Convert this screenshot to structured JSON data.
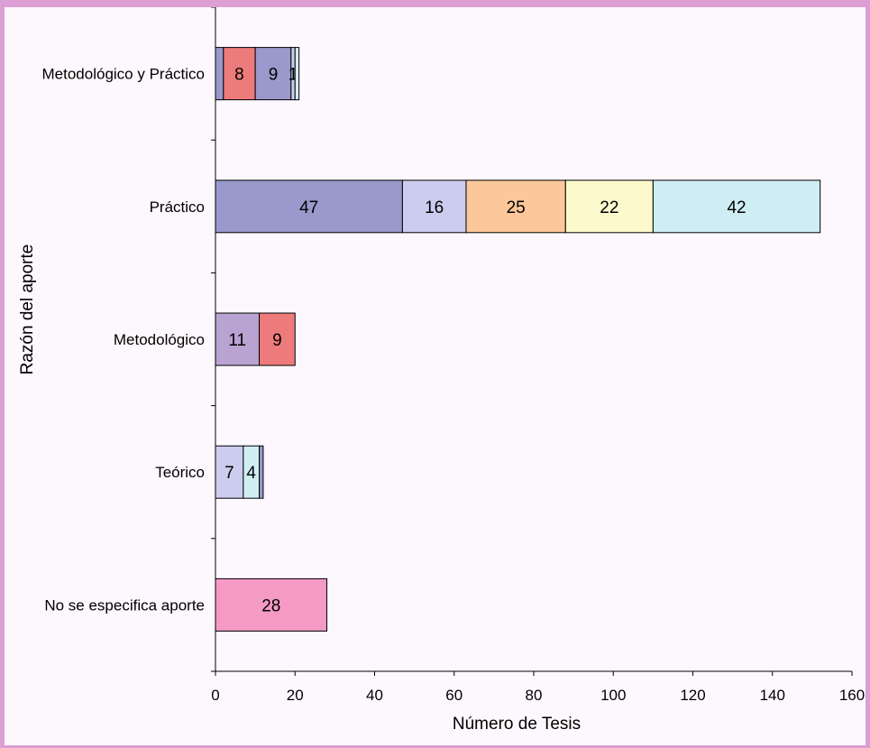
{
  "chart_data": {
    "type": "bar",
    "orientation": "horizontal",
    "stacked": true,
    "xlabel": "Número de Tesis",
    "ylabel": "Razón del aporte",
    "xlim": [
      0,
      160
    ],
    "xticks": [
      "0",
      "20",
      "40",
      "60",
      "80",
      "100",
      "120",
      "140",
      "160"
    ],
    "grid": false,
    "legend": "none",
    "categories": [
      "Metodológico y Práctico",
      "Práctico",
      "Metodológico",
      "Teórico",
      "No se especifica aporte"
    ],
    "bars": [
      {
        "category": "Metodológico y Práctico",
        "segments": [
          {
            "value": 2,
            "label": "",
            "color": "#9999cc"
          },
          {
            "value": 8,
            "label": "8",
            "color": "#ee7b7b"
          },
          {
            "value": 9,
            "label": "9",
            "color": "#9999cc"
          },
          {
            "value": 1,
            "label": "1",
            "color": "#ccccee"
          },
          {
            "value": 1,
            "label": "",
            "color": "#cfeef4"
          }
        ]
      },
      {
        "category": "Práctico",
        "segments": [
          {
            "value": 47,
            "label": "47",
            "color": "#9999cc"
          },
          {
            "value": 16,
            "label": "16",
            "color": "#ccccee"
          },
          {
            "value": 25,
            "label": "25",
            "color": "#fcc79a"
          },
          {
            "value": 22,
            "label": "22",
            "color": "#fcfacd"
          },
          {
            "value": 42,
            "label": "42",
            "color": "#cfeef4"
          }
        ]
      },
      {
        "category": "Metodológico",
        "segments": [
          {
            "value": 11,
            "label": "11",
            "color": "#b9a3d2"
          },
          {
            "value": 9,
            "label": "9",
            "color": "#ee7b7b"
          }
        ]
      },
      {
        "category": "Teórico",
        "segments": [
          {
            "value": 7,
            "label": "7",
            "color": "#ccccee"
          },
          {
            "value": 4,
            "label": "4",
            "color": "#cfeef4"
          },
          {
            "value": 1,
            "label": "",
            "color": "#9999cc"
          }
        ]
      },
      {
        "category": "No se especifica aporte",
        "segments": [
          {
            "value": 28,
            "label": "28",
            "color": "#f59ac5"
          }
        ]
      }
    ],
    "colors": {
      "background": "#fdf8fd",
      "border": "#dc9fd4"
    }
  }
}
